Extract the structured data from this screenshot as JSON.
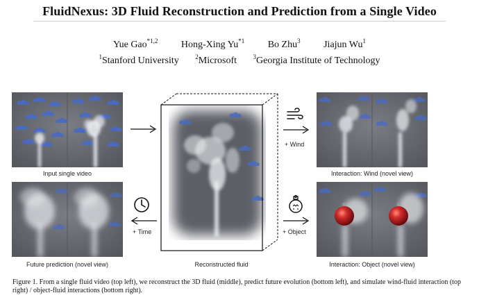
{
  "paper": {
    "title": "FluidNexus: 3D Fluid Reconstruction and Prediction from a Single Video",
    "authors": [
      {
        "name": "Yue Gao",
        "marks": "*1,2"
      },
      {
        "name": "Hong-Xing Yu",
        "marks": "*1"
      },
      {
        "name": "Bo Zhu",
        "marks": "3"
      },
      {
        "name": "Jiajun Wu",
        "marks": "1"
      }
    ],
    "affiliations": [
      {
        "mark": "1",
        "name": "Stanford University"
      },
      {
        "mark": "2",
        "name": "Microsoft"
      },
      {
        "mark": "3",
        "name": "Georgia Institute of Technology"
      }
    ]
  },
  "figure": {
    "panels": {
      "input": "Input single video",
      "future": "Future prediction (novel view)",
      "reconstructed": "Reconstructed fluid",
      "wind": "Interaction: Wind (novel view)",
      "object": "Interaction: Object (novel view)"
    },
    "arrows": {
      "wind_label": "+ Wind",
      "time_label": "+ Time",
      "object_label": "+ Object"
    },
    "icons": {
      "wind": "wind-icon",
      "time": "clock-icon",
      "object": "ornament-icon"
    },
    "caption": "Figure 1. From a single fluid video (top left), we reconstruct the 3D fluid (middle), predict future evolution (bottom left), and simulate wind-fluid interaction (top right) / object-fluid interactions (bottom right).",
    "colors": {
      "background_panel": "#6b6e75",
      "cloud": "#4a6bc0",
      "smoke": "#e9ebee",
      "ornament": "#b0141c"
    }
  }
}
